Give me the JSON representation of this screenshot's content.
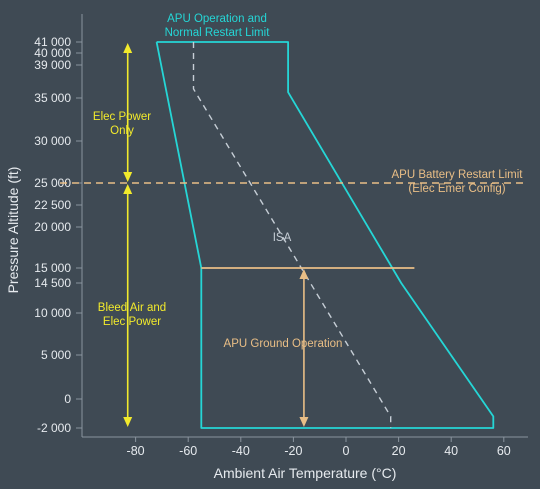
{
  "chart_data": {
    "type": "line",
    "xlabel": "Ambient Air Temperature (°C)",
    "ylabel": "Pressure Altitude (ft)",
    "xlim": [
      -100,
      66
    ],
    "x_ticks": [
      {
        "value": -80,
        "label": "-80"
      },
      {
        "value": -60,
        "label": "-60"
      },
      {
        "value": -40,
        "label": "-40"
      },
      {
        "value": -20,
        "label": "-20"
      },
      {
        "value": 0,
        "label": "0"
      },
      {
        "value": 20,
        "label": "20"
      },
      {
        "value": 40,
        "label": "40"
      },
      {
        "value": 60,
        "label": "60"
      }
    ],
    "y_ticks": [
      {
        "value": 41000,
        "label": "41 000"
      },
      {
        "value": 40000,
        "label": "40 000"
      },
      {
        "value": 39000,
        "label": "39 000"
      },
      {
        "value": 35000,
        "label": "35 000"
      },
      {
        "value": 30000,
        "label": "30 000"
      },
      {
        "value": 25000,
        "label": "25 000"
      },
      {
        "value": 22500,
        "label": "22 500"
      },
      {
        "value": 20000,
        "label": "20 000"
      },
      {
        "value": 15000,
        "label": "15 000"
      },
      {
        "value": 14500,
        "label": "14 500"
      },
      {
        "value": 10000,
        "label": "10 000"
      },
      {
        "value": 5000,
        "label": "5 000"
      },
      {
        "value": 0,
        "label": "0"
      },
      {
        "value": -2000,
        "label": "-2 000"
      }
    ],
    "series": [
      {
        "name": "APU Operation and Normal Restart Limit",
        "color": "#25d6d6",
        "points": [
          [
            -72,
            41000
          ],
          [
            -22,
            41000
          ],
          [
            -22,
            35700
          ],
          [
            21,
            14500
          ],
          [
            56,
            -1200
          ],
          [
            56,
            -2000
          ],
          [
            -55,
            -2000
          ],
          [
            -55,
            15000
          ],
          [
            -72,
            41000
          ]
        ]
      },
      {
        "name": "ISA",
        "color": "#c6ced6",
        "dashed": true,
        "points": [
          [
            -58,
            41000
          ],
          [
            -58,
            36100
          ],
          [
            17,
            -1200
          ],
          [
            17,
            -2000
          ]
        ]
      },
      {
        "name": "APU Ground Operation",
        "color": "#e9be86",
        "points": [
          [
            -55,
            15000
          ],
          [
            26,
            15000
          ]
        ]
      }
    ],
    "reference_lines": [
      {
        "label": "APU Battery Restart Limit\n(Elec Emer Config)",
        "y": 25000,
        "color": "#e9be86",
        "dashed": true
      }
    ],
    "annotations": [
      {
        "text": "APU Operation and\nNormal Restart Limit",
        "color": "#25d6d6"
      },
      {
        "text": "Elec Power\nOnly",
        "color": "#f2ea2c"
      },
      {
        "text": "Bleed Air and\nElec Power",
        "color": "#f2ea2c"
      },
      {
        "text": "ISA",
        "color": "#c6ced6"
      },
      {
        "text": "APU Ground Operation",
        "color": "#e9be86"
      }
    ],
    "range_arrows": [
      {
        "x": -83,
        "from": 25000,
        "to": 41000,
        "color": "#f2ea2c"
      },
      {
        "x": -83,
        "from": -2000,
        "to": 25000,
        "color": "#f2ea2c"
      },
      {
        "x": -16,
        "from": -2000,
        "to": 15000,
        "color": "#e9be86"
      }
    ],
    "grid": false,
    "legend": "none"
  }
}
